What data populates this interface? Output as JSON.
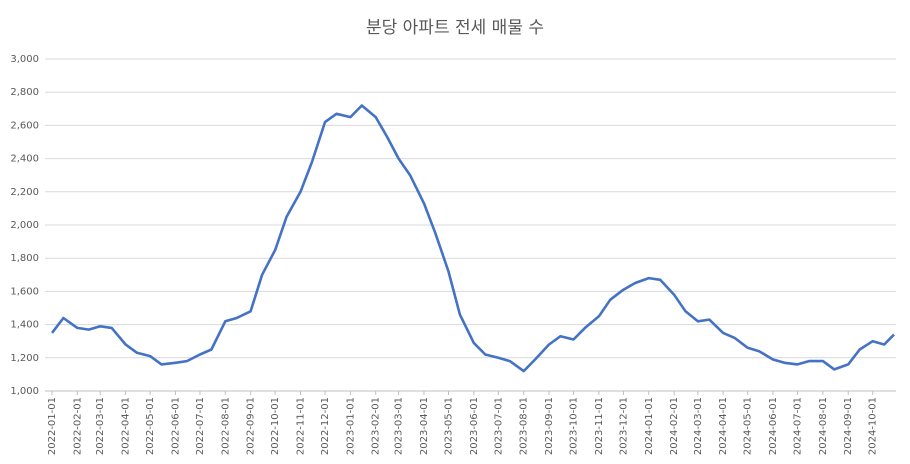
{
  "chart_data": {
    "type": "line",
    "title": "분당 아파트 전세 매물 수",
    "x": [
      "2022-01-01",
      "2022-01-15",
      "2022-02-01",
      "2022-02-15",
      "2022-03-01",
      "2022-03-15",
      "2022-04-01",
      "2022-04-15",
      "2022-05-01",
      "2022-05-15",
      "2022-06-01",
      "2022-06-15",
      "2022-07-01",
      "2022-07-15",
      "2022-08-01",
      "2022-08-15",
      "2022-09-01",
      "2022-09-15",
      "2022-10-01",
      "2022-10-15",
      "2022-11-01",
      "2022-11-15",
      "2022-12-01",
      "2022-12-15",
      "2023-01-01",
      "2023-01-15",
      "2023-02-01",
      "2023-02-15",
      "2023-03-01",
      "2023-03-15",
      "2023-04-01",
      "2023-04-15",
      "2023-05-01",
      "2023-05-15",
      "2023-06-01",
      "2023-06-15",
      "2023-07-01",
      "2023-07-15",
      "2023-08-01",
      "2023-08-15",
      "2023-09-01",
      "2023-09-15",
      "2023-10-01",
      "2023-10-15",
      "2023-11-01",
      "2023-11-15",
      "2023-12-01",
      "2023-12-15",
      "2024-01-01",
      "2024-01-15",
      "2024-02-01",
      "2024-02-15",
      "2024-03-01",
      "2024-03-15",
      "2024-04-01",
      "2024-04-15",
      "2024-05-01",
      "2024-05-15",
      "2024-06-01",
      "2024-06-15",
      "2024-07-01",
      "2024-07-15",
      "2024-08-01",
      "2024-08-15",
      "2024-09-01",
      "2024-09-15",
      "2024-10-01",
      "2024-10-15",
      "2024-10-27"
    ],
    "series": [
      {
        "name": "매물 수",
        "color": "#4472c4",
        "values": [
          1350,
          1440,
          1380,
          1370,
          1390,
          1380,
          1280,
          1230,
          1210,
          1160,
          1170,
          1180,
          1220,
          1250,
          1420,
          1440,
          1480,
          1700,
          1850,
          2050,
          2200,
          2380,
          2620,
          2670,
          2650,
          2720,
          2650,
          2530,
          2400,
          2300,
          2130,
          1950,
          1720,
          1460,
          1290,
          1220,
          1200,
          1180,
          1120,
          1190,
          1280,
          1330,
          1310,
          1380,
          1450,
          1550,
          1610,
          1650,
          1680,
          1670,
          1580,
          1480,
          1420,
          1430,
          1350,
          1320,
          1260,
          1240,
          1190,
          1170,
          1160,
          1180,
          1180,
          1130,
          1160,
          1250,
          1300,
          1280,
          1340
        ]
      }
    ],
    "xlim": [
      "2022-01-01",
      "2024-10-27"
    ],
    "xticks": [
      "2022-01-01",
      "2022-02-01",
      "2022-03-01",
      "2022-04-01",
      "2022-05-01",
      "2022-06-01",
      "2022-07-01",
      "2022-08-01",
      "2022-09-01",
      "2022-10-01",
      "2022-11-01",
      "2022-12-01",
      "2023-01-01",
      "2023-02-01",
      "2023-03-01",
      "2023-04-01",
      "2023-05-01",
      "2023-06-01",
      "2023-07-01",
      "2023-08-01",
      "2023-09-01",
      "2023-10-01",
      "2023-11-01",
      "2023-12-01",
      "2024-01-01",
      "2024-02-01",
      "2024-03-01",
      "2024-04-01",
      "2024-05-01",
      "2024-06-01",
      "2024-07-01",
      "2024-08-01",
      "2024-09-01",
      "2024-10-01"
    ],
    "ylim": [
      1000,
      3000
    ],
    "yticks": [
      {
        "value": 1000,
        "label": "1,000"
      },
      {
        "value": 1200,
        "label": "1,200"
      },
      {
        "value": 1400,
        "label": "1,400"
      },
      {
        "value": 1600,
        "label": "1,600"
      },
      {
        "value": 1800,
        "label": "1,800"
      },
      {
        "value": 2000,
        "label": "2,000"
      },
      {
        "value": 2200,
        "label": "2,200"
      },
      {
        "value": 2400,
        "label": "2,400"
      },
      {
        "value": 2600,
        "label": "2,600"
      },
      {
        "value": 2800,
        "label": "2,800"
      },
      {
        "value": 3000,
        "label": "3,000"
      }
    ],
    "grid": true
  }
}
